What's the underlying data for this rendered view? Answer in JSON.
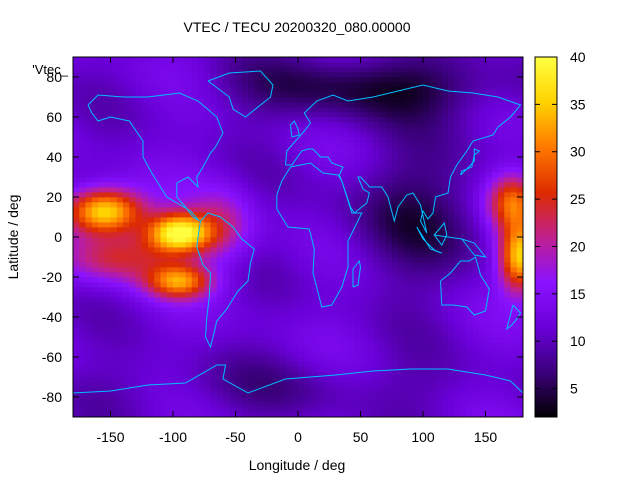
{
  "chart_data": {
    "type": "heatmap",
    "title": "VTEC / TECU 20200320_080.00000",
    "xlabel": "Longitude / deg",
    "ylabel": "Latitude / deg",
    "series_label": "'Vtec_",
    "xlim": [
      -180,
      180
    ],
    "ylim": [
      -90,
      90
    ],
    "x_ticks": [
      -150,
      -100,
      -50,
      0,
      50,
      100,
      150
    ],
    "y_ticks": [
      -80,
      -60,
      -40,
      -20,
      0,
      20,
      40,
      60,
      80
    ],
    "colorbar": {
      "range": [
        2,
        40
      ],
      "ticks": [
        5,
        10,
        15,
        20,
        25,
        30,
        35,
        40
      ],
      "palette": [
        "#000000",
        "#3a007a",
        "#6a00d8",
        "#8a12ff",
        "#c0208e",
        "#dd2b00",
        "#ff7800",
        "#ffd200",
        "#ffff40"
      ]
    },
    "grid": false,
    "cells": {
      "dlon": 5,
      "dlat": 2.5,
      "background_tecu": 12,
      "features": [
        {
          "region": "night-side low",
          "lon": 95,
          "lat": 10,
          "peak_tecu": 6
        },
        {
          "region": "arctic low",
          "lon": 60,
          "lat": 75,
          "peak_tecu": 4
        },
        {
          "region": "equatorial anomaly north (Pacific)",
          "lon": -155,
          "lat": 13,
          "peak_tecu": 38
        },
        {
          "region": "equatorial anomaly north (Americas)",
          "lon": -95,
          "lat": 2,
          "peak_tecu": 39
        },
        {
          "region": "equatorial anomaly south (Americas)",
          "lon": -95,
          "lat": -22,
          "peak_tecu": 30
        },
        {
          "region": "dateline crest",
          "lon": 178,
          "lat": -10,
          "peak_tecu": 38
        },
        {
          "region": "dateline crest north",
          "lon": 170,
          "lat": 18,
          "peak_tecu": 30
        }
      ]
    }
  },
  "coastline_color": "#00bfff"
}
